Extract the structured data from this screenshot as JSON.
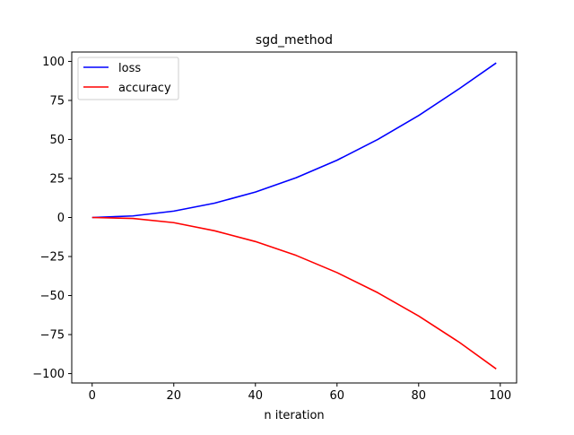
{
  "chart_data": {
    "type": "line",
    "title": "sgd_method",
    "xlabel": "n iteration",
    "ylabel": "",
    "xlim": [
      -5,
      104
    ],
    "ylim": [
      -106,
      106
    ],
    "x_ticks": [
      0,
      20,
      40,
      60,
      80,
      100
    ],
    "x_tick_labels": [
      "0",
      "20",
      "40",
      "60",
      "80",
      "100"
    ],
    "y_ticks": [
      100,
      75,
      50,
      25,
      0,
      -25,
      -50,
      -75,
      -100
    ],
    "y_tick_labels": [
      "100",
      "75",
      "50",
      "25",
      "0",
      "−25",
      "−50",
      "−75",
      "−100"
    ],
    "grid": false,
    "legend_position": "top-left",
    "x": [
      0,
      10,
      20,
      30,
      40,
      50,
      60,
      70,
      80,
      90,
      99
    ],
    "series": [
      {
        "name": "loss",
        "color": "#0000ff",
        "values": [
          0.0,
          1.0,
          4.1,
          9.2,
          16.3,
          25.5,
          36.7,
          50.0,
          65.3,
          82.6,
          99.0
        ]
      },
      {
        "name": "accuracy",
        "color": "#ff0000",
        "values": [
          0.0,
          -0.6,
          -3.3,
          -8.5,
          -15.4,
          -24.3,
          -35.3,
          -48.2,
          -63.1,
          -80.0,
          -97.0
        ]
      }
    ]
  }
}
